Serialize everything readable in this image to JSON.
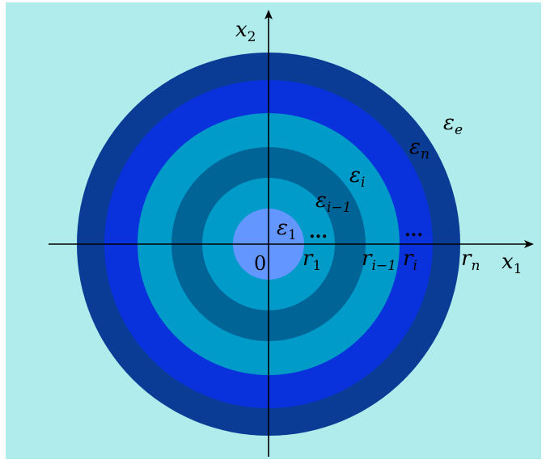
{
  "colors": {
    "background": "#b0ecec",
    "ring_n_outer": "#0a3c96",
    "ring_n": "#0a32dc",
    "ring_i": "#009bc8",
    "ring_i_minus_1": "#006496",
    "ring_1": "#009bc8",
    "core": "#6496ff",
    "axis": "#000000"
  },
  "axes": {
    "x_label_base": "x",
    "x_label_sub": "1",
    "y_label_base": "x",
    "y_label_sub": "2",
    "origin": "0"
  },
  "regions": {
    "eps_e_base": "ε",
    "eps_e_sub": "e",
    "eps_n_base": "ε",
    "eps_n_sub": "n",
    "eps_i_base": "ε",
    "eps_i_sub": "i",
    "eps_im1_base": "ε",
    "eps_im1_sub": "i−1",
    "eps_1_base": "ε",
    "eps_1_sub": "1"
  },
  "radii": {
    "r1_base": "r",
    "r1_sub": "1",
    "rim1_base": "r",
    "rim1_sub": "i−1",
    "ri_base": "r",
    "ri_sub": "i",
    "rn_base": "r",
    "rn_sub": "n"
  },
  "ellipsis_inner": "...",
  "ellipsis_outer": "..."
}
